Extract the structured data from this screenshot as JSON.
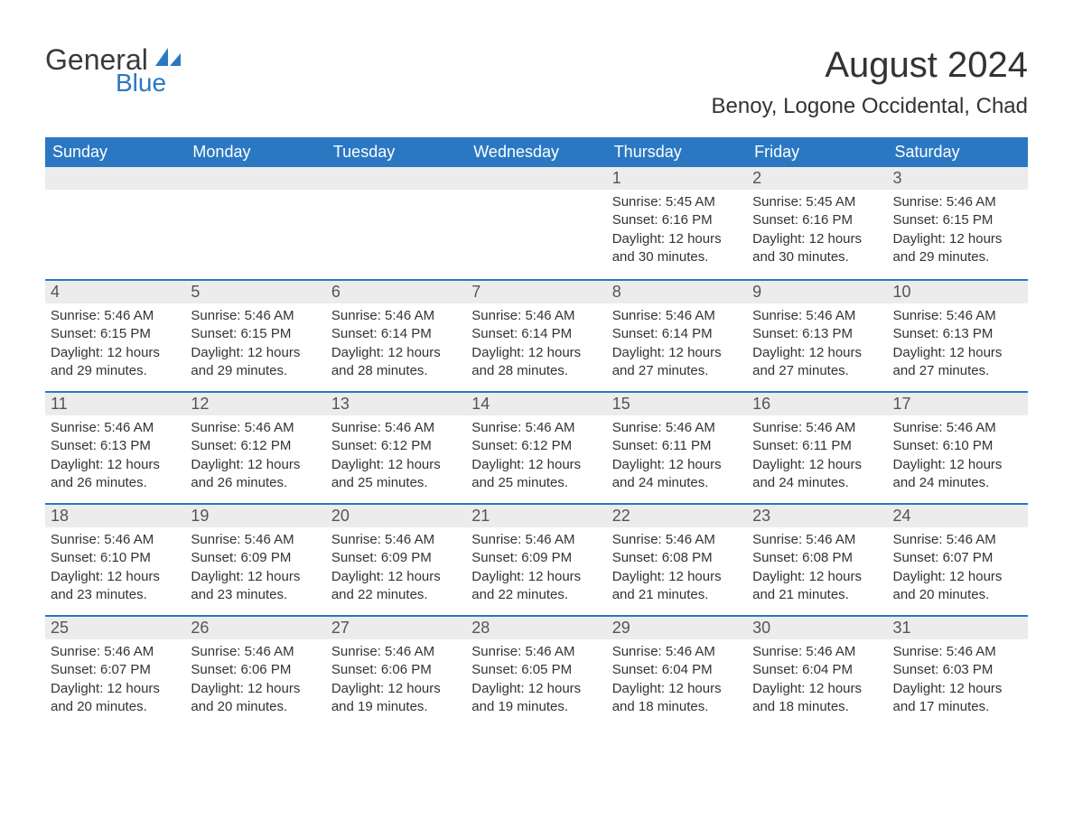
{
  "logo": {
    "main": "General",
    "sub": "Blue",
    "accent_color": "#2b78c2"
  },
  "title": "August 2024",
  "location": "Benoy, Logone Occidental, Chad",
  "colors": {
    "header_bg": "#2b78c2",
    "header_text": "#ffffff",
    "daynum_bg": "#ececec",
    "row_border": "#2b78c2",
    "body_text": "#333333"
  },
  "typography": {
    "title_fontsize": 40,
    "location_fontsize": 24,
    "header_fontsize": 18,
    "daynum_fontsize": 18,
    "body_fontsize": 15
  },
  "weekdays": [
    "Sunday",
    "Monday",
    "Tuesday",
    "Wednesday",
    "Thursday",
    "Friday",
    "Saturday"
  ],
  "labels": {
    "sunrise": "Sunrise:",
    "sunset": "Sunset:",
    "daylight_prefix": "Daylight:",
    "and": "and",
    "minutes_suffix": "minutes."
  },
  "weeks": [
    [
      null,
      null,
      null,
      null,
      {
        "day": "1",
        "sunrise": "5:45 AM",
        "sunset": "6:16 PM",
        "daylight_h": "12 hours",
        "daylight_m": "30"
      },
      {
        "day": "2",
        "sunrise": "5:45 AM",
        "sunset": "6:16 PM",
        "daylight_h": "12 hours",
        "daylight_m": "30"
      },
      {
        "day": "3",
        "sunrise": "5:46 AM",
        "sunset": "6:15 PM",
        "daylight_h": "12 hours",
        "daylight_m": "29"
      }
    ],
    [
      {
        "day": "4",
        "sunrise": "5:46 AM",
        "sunset": "6:15 PM",
        "daylight_h": "12 hours",
        "daylight_m": "29"
      },
      {
        "day": "5",
        "sunrise": "5:46 AM",
        "sunset": "6:15 PM",
        "daylight_h": "12 hours",
        "daylight_m": "29"
      },
      {
        "day": "6",
        "sunrise": "5:46 AM",
        "sunset": "6:14 PM",
        "daylight_h": "12 hours",
        "daylight_m": "28"
      },
      {
        "day": "7",
        "sunrise": "5:46 AM",
        "sunset": "6:14 PM",
        "daylight_h": "12 hours",
        "daylight_m": "28"
      },
      {
        "day": "8",
        "sunrise": "5:46 AM",
        "sunset": "6:14 PM",
        "daylight_h": "12 hours",
        "daylight_m": "27"
      },
      {
        "day": "9",
        "sunrise": "5:46 AM",
        "sunset": "6:13 PM",
        "daylight_h": "12 hours",
        "daylight_m": "27"
      },
      {
        "day": "10",
        "sunrise": "5:46 AM",
        "sunset": "6:13 PM",
        "daylight_h": "12 hours",
        "daylight_m": "27"
      }
    ],
    [
      {
        "day": "11",
        "sunrise": "5:46 AM",
        "sunset": "6:13 PM",
        "daylight_h": "12 hours",
        "daylight_m": "26"
      },
      {
        "day": "12",
        "sunrise": "5:46 AM",
        "sunset": "6:12 PM",
        "daylight_h": "12 hours",
        "daylight_m": "26"
      },
      {
        "day": "13",
        "sunrise": "5:46 AM",
        "sunset": "6:12 PM",
        "daylight_h": "12 hours",
        "daylight_m": "25"
      },
      {
        "day": "14",
        "sunrise": "5:46 AM",
        "sunset": "6:12 PM",
        "daylight_h": "12 hours",
        "daylight_m": "25"
      },
      {
        "day": "15",
        "sunrise": "5:46 AM",
        "sunset": "6:11 PM",
        "daylight_h": "12 hours",
        "daylight_m": "24"
      },
      {
        "day": "16",
        "sunrise": "5:46 AM",
        "sunset": "6:11 PM",
        "daylight_h": "12 hours",
        "daylight_m": "24"
      },
      {
        "day": "17",
        "sunrise": "5:46 AM",
        "sunset": "6:10 PM",
        "daylight_h": "12 hours",
        "daylight_m": "24"
      }
    ],
    [
      {
        "day": "18",
        "sunrise": "5:46 AM",
        "sunset": "6:10 PM",
        "daylight_h": "12 hours",
        "daylight_m": "23"
      },
      {
        "day": "19",
        "sunrise": "5:46 AM",
        "sunset": "6:09 PM",
        "daylight_h": "12 hours",
        "daylight_m": "23"
      },
      {
        "day": "20",
        "sunrise": "5:46 AM",
        "sunset": "6:09 PM",
        "daylight_h": "12 hours",
        "daylight_m": "22"
      },
      {
        "day": "21",
        "sunrise": "5:46 AM",
        "sunset": "6:09 PM",
        "daylight_h": "12 hours",
        "daylight_m": "22"
      },
      {
        "day": "22",
        "sunrise": "5:46 AM",
        "sunset": "6:08 PM",
        "daylight_h": "12 hours",
        "daylight_m": "21"
      },
      {
        "day": "23",
        "sunrise": "5:46 AM",
        "sunset": "6:08 PM",
        "daylight_h": "12 hours",
        "daylight_m": "21"
      },
      {
        "day": "24",
        "sunrise": "5:46 AM",
        "sunset": "6:07 PM",
        "daylight_h": "12 hours",
        "daylight_m": "20"
      }
    ],
    [
      {
        "day": "25",
        "sunrise": "5:46 AM",
        "sunset": "6:07 PM",
        "daylight_h": "12 hours",
        "daylight_m": "20"
      },
      {
        "day": "26",
        "sunrise": "5:46 AM",
        "sunset": "6:06 PM",
        "daylight_h": "12 hours",
        "daylight_m": "20"
      },
      {
        "day": "27",
        "sunrise": "5:46 AM",
        "sunset": "6:06 PM",
        "daylight_h": "12 hours",
        "daylight_m": "19"
      },
      {
        "day": "28",
        "sunrise": "5:46 AM",
        "sunset": "6:05 PM",
        "daylight_h": "12 hours",
        "daylight_m": "19"
      },
      {
        "day": "29",
        "sunrise": "5:46 AM",
        "sunset": "6:04 PM",
        "daylight_h": "12 hours",
        "daylight_m": "18"
      },
      {
        "day": "30",
        "sunrise": "5:46 AM",
        "sunset": "6:04 PM",
        "daylight_h": "12 hours",
        "daylight_m": "18"
      },
      {
        "day": "31",
        "sunrise": "5:46 AM",
        "sunset": "6:03 PM",
        "daylight_h": "12 hours",
        "daylight_m": "17"
      }
    ]
  ]
}
